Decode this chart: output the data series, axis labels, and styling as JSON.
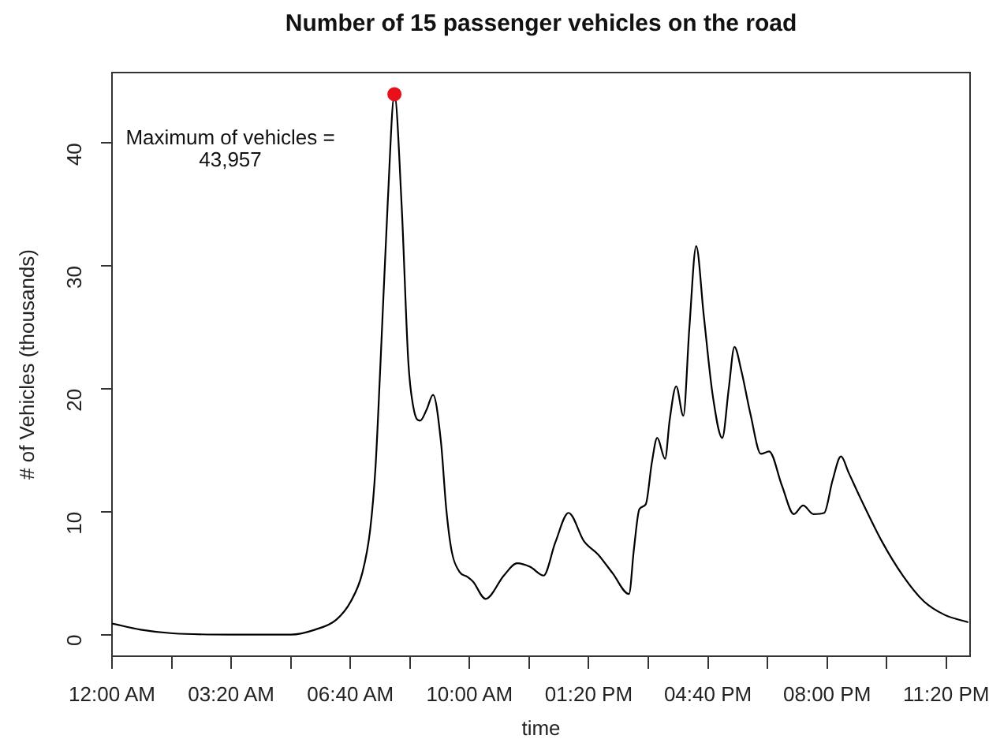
{
  "chart_data": {
    "type": "line",
    "title": "Number of 15 passenger vehicles on the road",
    "xlabel": "time",
    "ylabel": "# of Vehicles (thousands)",
    "xlim": [
      0,
      24
    ],
    "xticks": [
      {
        "value": 0,
        "label": "12:00 AM"
      },
      {
        "value": 1.6667,
        "label": null
      },
      {
        "value": 3.3333,
        "label": "03:20 AM"
      },
      {
        "value": 5,
        "label": null
      },
      {
        "value": 6.6667,
        "label": "06:40 AM"
      },
      {
        "value": 8.3333,
        "label": null
      },
      {
        "value": 10,
        "label": "10:00 AM"
      },
      {
        "value": 11.6667,
        "label": null
      },
      {
        "value": 13.3333,
        "label": "01:20 PM"
      },
      {
        "value": 15,
        "label": null
      },
      {
        "value": 16.6667,
        "label": "04:40 PM"
      },
      {
        "value": 18.3333,
        "label": null
      },
      {
        "value": 20,
        "label": "08:00 PM"
      },
      {
        "value": 21.6667,
        "label": null
      },
      {
        "value": 23.3333,
        "label": "11:20 PM"
      }
    ],
    "ylim": [
      -1.76,
      45.72
    ],
    "yticks": [
      0,
      10,
      20,
      30,
      40
    ],
    "grid": false,
    "legend": false,
    "series": [
      {
        "type": "line",
        "color": "#000000",
        "marker": "none",
        "x": [
          0,
          0.8,
          1.7,
          3.33,
          5,
          5.68,
          6.27,
          6.68,
          7,
          7.22,
          7.37,
          7.51,
          7.71,
          7.9,
          8.1,
          8.29,
          8.45,
          8.62,
          8.8,
          8.98,
          9.2,
          9.35,
          9.5,
          9.72,
          9.94,
          10.1,
          10.45,
          10.96,
          11.33,
          11.7,
          12.07,
          12.4,
          12.77,
          13.2,
          13.6,
          14,
          14.46,
          14.6,
          14.75,
          14.93,
          15.1,
          15.25,
          15.47,
          15.6,
          15.78,
          15.98,
          16.15,
          16.34,
          16.55,
          16.8,
          17.07,
          17.25,
          17.41,
          17.6,
          17.86,
          18.15,
          18.38,
          18.74,
          19.07,
          19.33,
          19.62,
          19.92,
          20.15,
          20.39,
          20.6,
          20.95,
          21.53,
          22.12,
          22.71,
          23.29,
          23.95
        ],
        "values": [
          0.9,
          0.4,
          0.1,
          0,
          0,
          0.4,
          1.2,
          2.7,
          5,
          8.5,
          13.6,
          22.1,
          35,
          43.957,
          35,
          22.1,
          18.2,
          17.4,
          18.3,
          19.5,
          15.7,
          10.2,
          6.8,
          5.1,
          4.7,
          4.3,
          2.9,
          4.8,
          5.8,
          5.5,
          4.8,
          7.5,
          9.9,
          7.6,
          6.5,
          5,
          3.3,
          7,
          10.2,
          10.6,
          14,
          16,
          14.3,
          17.5,
          20.2,
          17.8,
          25,
          31.6,
          26,
          19.5,
          16,
          20,
          23.4,
          21.5,
          17.9,
          14.7,
          14.9,
          12.1,
          9.8,
          10.5,
          9.8,
          9.9,
          12.5,
          14.5,
          13.2,
          11,
          7.6,
          4.8,
          2.7,
          1.6,
          1
        ]
      },
      {
        "type": "scatter",
        "color": "#e8101a",
        "marker": "circle",
        "x": [
          7.9
        ],
        "values": [
          43.957
        ]
      }
    ],
    "annotations": [
      "Maximum of vehicles =\n43,957"
    ]
  }
}
